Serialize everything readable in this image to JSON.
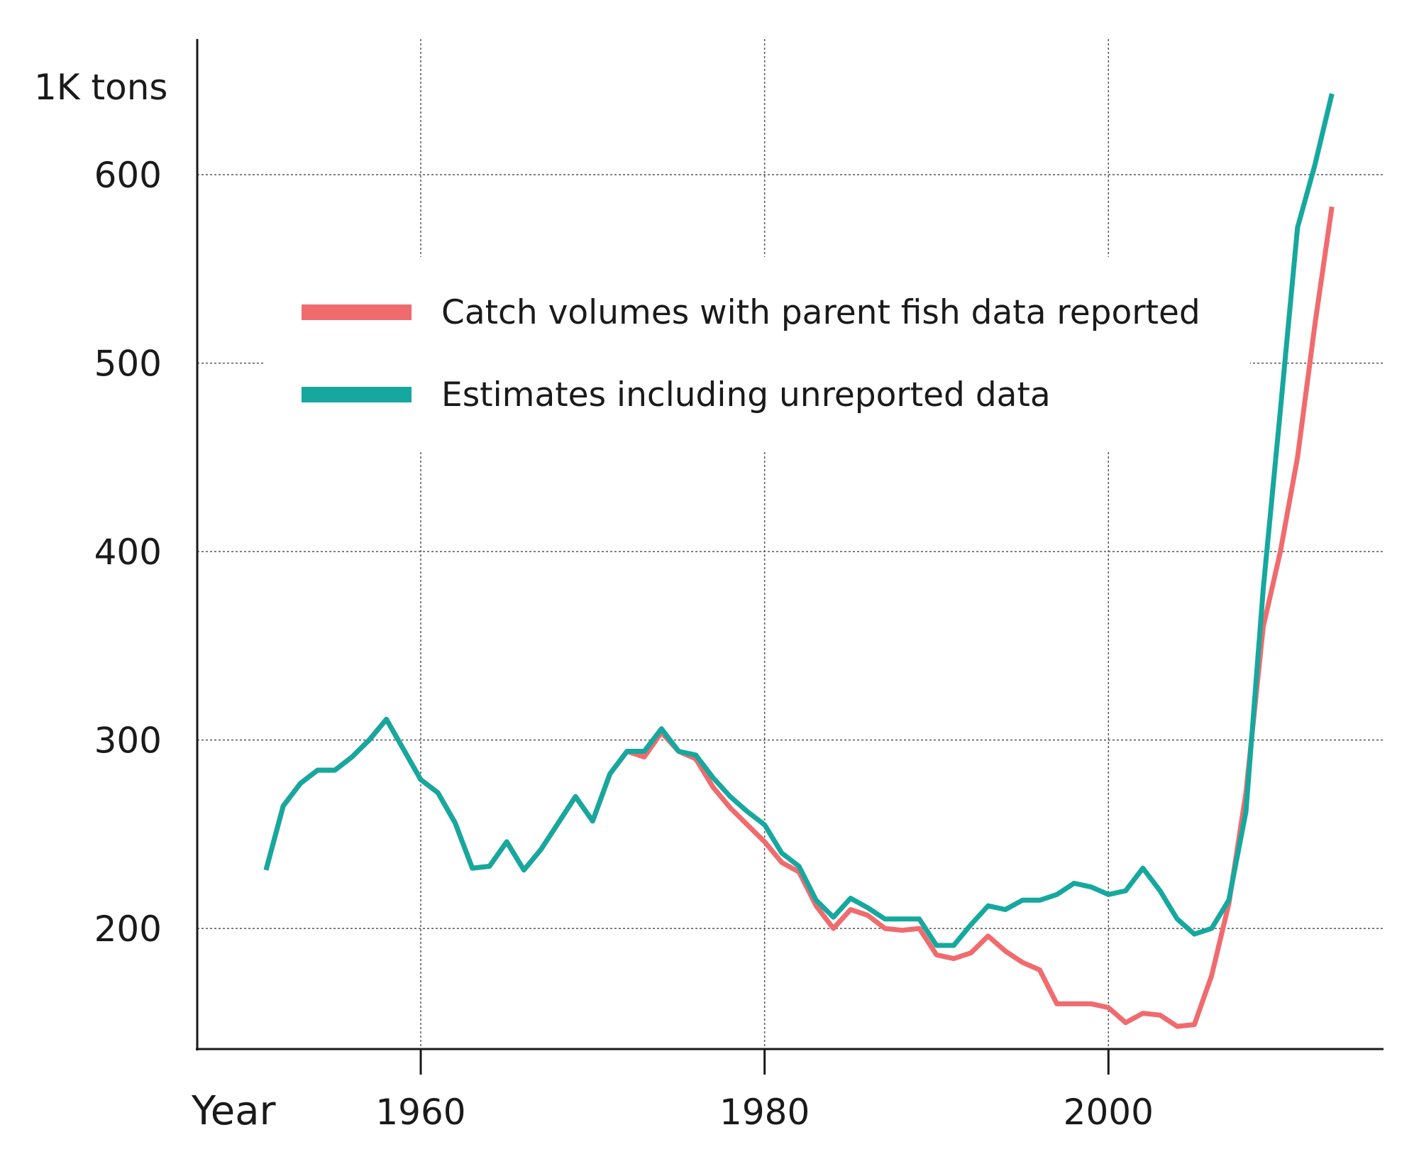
{
  "chart_data": {
    "type": "line",
    "ylabel": "1K tons",
    "xlabel": "Year",
    "xlim": [
      1947,
      2016
    ],
    "ylim": [
      136,
      672
    ],
    "xticks": [
      1960,
      1980,
      2000
    ],
    "yticks": [
      200,
      300,
      400,
      500,
      600
    ],
    "grid": true,
    "legend_position": "upper-center",
    "series": [
      {
        "name": "Catch volumes with parent fish data reported",
        "color": "#f06b6e",
        "x": [
          1951,
          1952,
          1953,
          1954,
          1955,
          1956,
          1957,
          1958,
          1959,
          1960,
          1961,
          1962,
          1963,
          1964,
          1965,
          1966,
          1967,
          1968,
          1969,
          1970,
          1971,
          1972,
          1973,
          1974,
          1975,
          1976,
          1977,
          1978,
          1979,
          1980,
          1981,
          1982,
          1983,
          1984,
          1985,
          1986,
          1987,
          1988,
          1989,
          1990,
          1991,
          1992,
          1993,
          1994,
          1995,
          1996,
          1997,
          1998,
          1999,
          2000,
          2001,
          2002,
          2003,
          2004,
          2005,
          2006,
          2007,
          2008,
          2009,
          2010,
          2011,
          2012,
          2013
        ],
        "y": [
          231,
          265,
          277,
          284,
          284,
          291,
          300,
          311,
          295,
          279,
          272,
          256,
          232,
          233,
          246,
          231,
          242,
          256,
          270,
          257,
          282,
          294,
          291,
          304,
          294,
          290,
          275,
          264,
          255,
          246,
          235,
          230,
          212,
          200,
          210,
          207,
          200,
          199,
          200,
          186,
          184,
          187,
          196,
          188,
          182,
          178,
          160,
          160,
          160,
          158,
          150,
          155,
          154,
          148,
          149,
          175,
          213,
          272,
          360,
          400,
          450,
          520,
          583
        ]
      },
      {
        "name": "Estimates including unreported data",
        "color": "#16a89e",
        "x": [
          1951,
          1952,
          1953,
          1954,
          1955,
          1956,
          1957,
          1958,
          1959,
          1960,
          1961,
          1962,
          1963,
          1964,
          1965,
          1966,
          1967,
          1968,
          1969,
          1970,
          1971,
          1972,
          1973,
          1974,
          1975,
          1976,
          1977,
          1978,
          1979,
          1980,
          1981,
          1982,
          1983,
          1984,
          1985,
          1986,
          1987,
          1988,
          1989,
          1990,
          1991,
          1992,
          1993,
          1994,
          1995,
          1996,
          1997,
          1998,
          1999,
          2000,
          2001,
          2002,
          2003,
          2004,
          2005,
          2006,
          2007,
          2008,
          2009,
          2010,
          2011,
          2012,
          2013
        ],
        "y": [
          231,
          265,
          277,
          284,
          284,
          291,
          300,
          311,
          295,
          279,
          272,
          256,
          232,
          233,
          246,
          231,
          242,
          256,
          270,
          257,
          282,
          294,
          294,
          306,
          294,
          292,
          280,
          270,
          262,
          255,
          240,
          233,
          215,
          206,
          216,
          211,
          205,
          205,
          205,
          191,
          191,
          202,
          212,
          210,
          215,
          215,
          218,
          224,
          222,
          218,
          220,
          232,
          220,
          205,
          197,
          200,
          215,
          262,
          380,
          475,
          572,
          605,
          643
        ]
      }
    ]
  }
}
